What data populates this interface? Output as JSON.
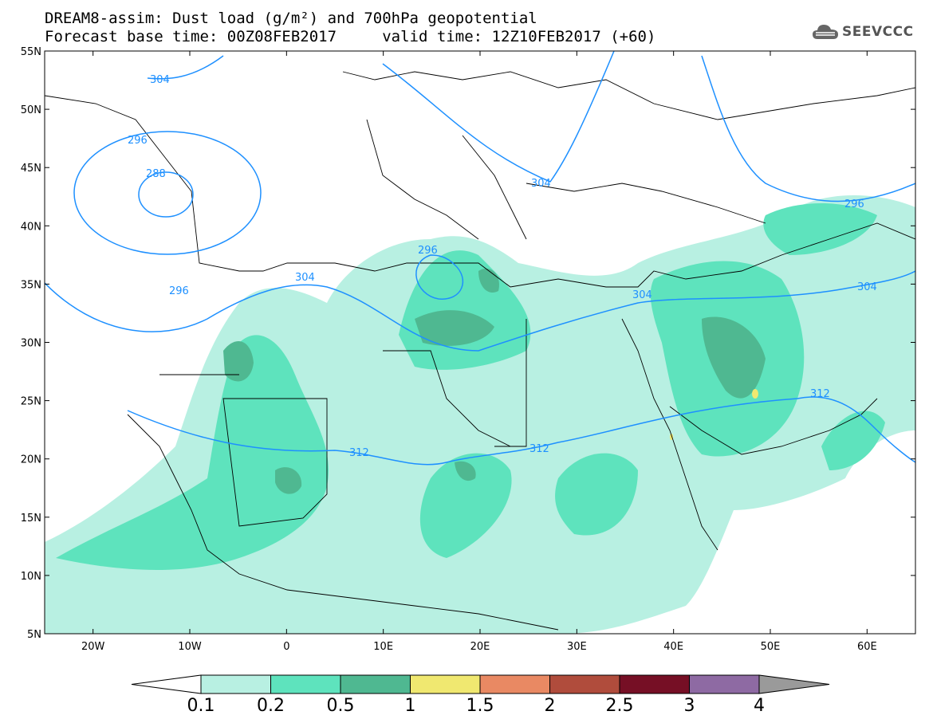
{
  "title_line1": "DREAM8-assim: Dust load (g/m²) and 700hPa geopotential",
  "title_line2": "Forecast base time: 00Z08FEB2017     valid time: 12Z10FEB2017 (+60)",
  "logo": {
    "text": "SEEVCCC",
    "icon": "cloud-icon"
  },
  "axes": {
    "lon_range": [
      -25,
      65
    ],
    "lat_range": [
      5,
      55
    ],
    "lat_ticks": [
      "55N",
      "50N",
      "45N",
      "40N",
      "35N",
      "30N",
      "25N",
      "20N",
      "15N",
      "10N",
      "5N"
    ],
    "lon_ticks": [
      "20W",
      "10W",
      "0",
      "10E",
      "20E",
      "30E",
      "40E",
      "50E",
      "60E"
    ]
  },
  "colorbar": {
    "levels": [
      "0.1",
      "0.2",
      "0.5",
      "1",
      "1.5",
      "2",
      "2.5",
      "3",
      "4"
    ],
    "colors": [
      "#b8f0e2",
      "#5ee3bd",
      "#4fb891",
      "#f0e870",
      "#e98963",
      "#b04c3c",
      "#760f25",
      "#8e6aa3"
    ],
    "under_color": "#ffffff",
    "over_color": "#9a9a9a"
  },
  "contour_labels": [
    {
      "text": "304"
    },
    {
      "text": "296"
    },
    {
      "text": "288"
    },
    {
      "text": "296"
    },
    {
      "text": "304"
    },
    {
      "text": "296"
    },
    {
      "text": "304"
    },
    {
      "text": "296"
    },
    {
      "text": "304"
    },
    {
      "text": "304"
    },
    {
      "text": "312"
    },
    {
      "text": "312"
    },
    {
      "text": "312"
    }
  ],
  "colors": {
    "contour": "#1e90ff",
    "land_outline": "#000000"
  }
}
